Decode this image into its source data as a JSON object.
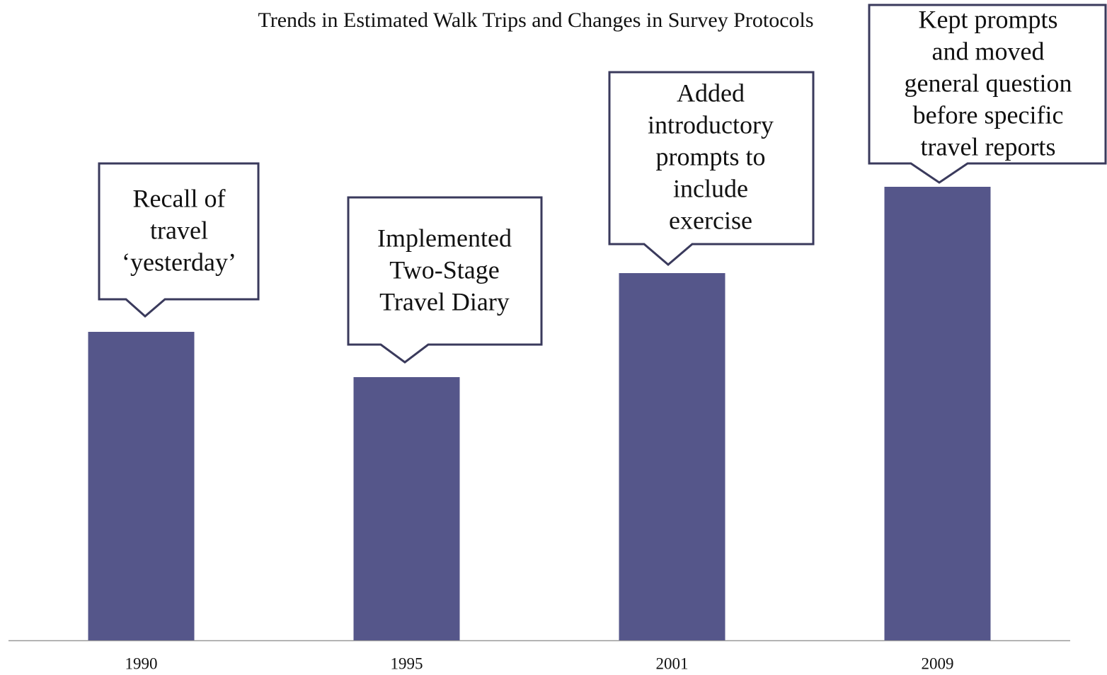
{
  "chart_data": {
    "type": "bar",
    "title": "Trends in Estimated Walk Trips and Changes in Survey Protocols",
    "categories": [
      "1990",
      "1995",
      "2001",
      "2009"
    ],
    "values": [
      436,
      372,
      519,
      641
    ],
    "color": "#55568a",
    "ylim": [
      0,
      900
    ],
    "annotations": [
      [
        "Recall of",
        "travel",
        "‘yesterday’"
      ],
      [
        "Implemented",
        "Two-Stage",
        "Travel Diary"
      ],
      [
        "Added",
        "introductory",
        "prompts to",
        "include",
        "exercise"
      ],
      [
        "Kept prompts",
        "and moved",
        "general question",
        "before specific",
        "travel reports"
      ]
    ]
  }
}
